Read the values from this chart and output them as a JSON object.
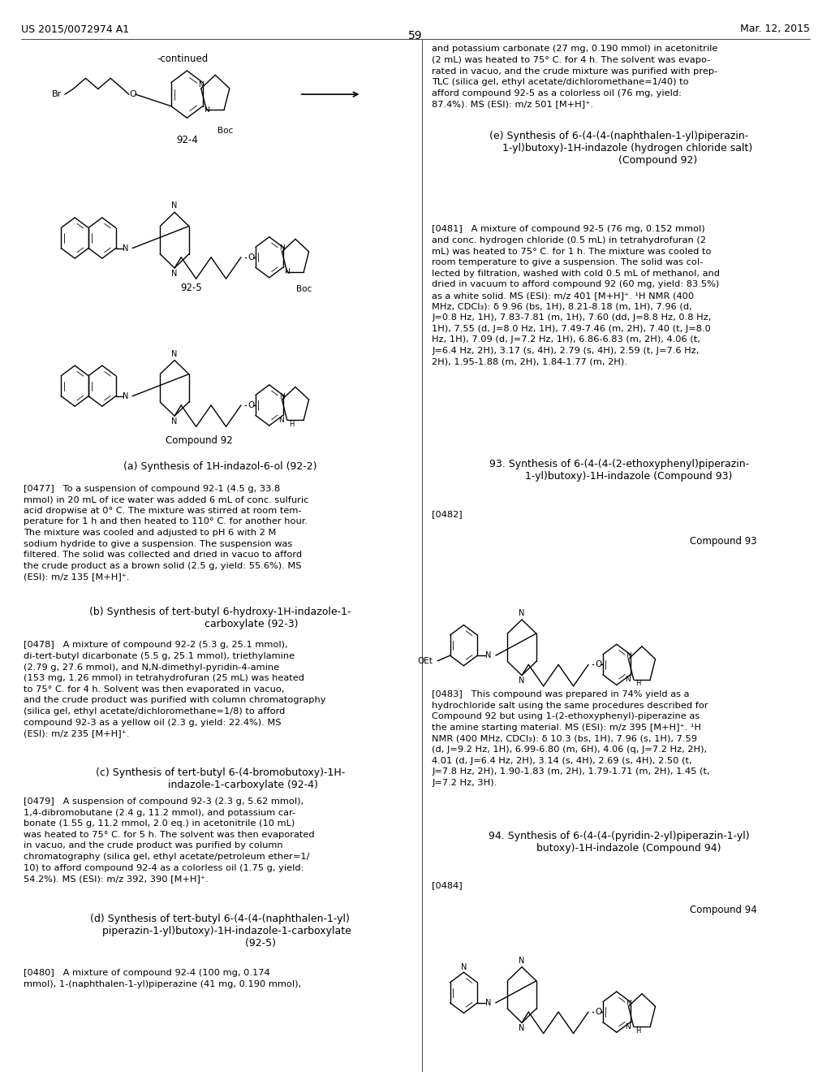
{
  "page_number": "59",
  "header_left": "US 2015/0072974 A1",
  "header_right": "Mar. 12, 2015",
  "background_color": "#ffffff",
  "text_color": "#000000"
}
